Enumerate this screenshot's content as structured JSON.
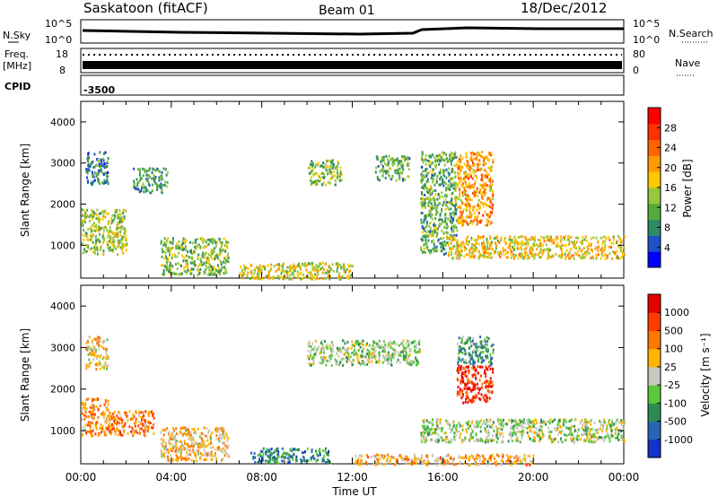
{
  "header": {
    "site": "Saskatoon (fitACF)",
    "beam": "Beam 01",
    "date": "18/Dec/2012"
  },
  "aux_panels": {
    "nsky_label": "N.Sky",
    "nsky_tick_hi": "10^5",
    "nsky_tick_lo": "10^0",
    "nsearch_label": "N.Search",
    "nsearch_tick_hi": "10^5",
    "nsearch_tick_lo": "10^0",
    "freq_label_1": "Freq.",
    "freq_label_2": "[MHz]",
    "freq_tick_hi": "18",
    "freq_tick_lo": "8",
    "nave_label": "Nave",
    "nave_tick_hi": "80",
    "nave_tick_lo": "0",
    "cpid_label": "CPID",
    "cpid_value": "-3500"
  },
  "chart_data": [
    {
      "type": "heatmap",
      "title": "Power",
      "ylabel": "Slant Range [km]",
      "ylim": [
        200,
        4500
      ],
      "yticks": [
        "1000",
        "2000",
        "3000",
        "4000"
      ],
      "xlim": [
        0,
        24
      ],
      "colorbar_label": "Power [dB]",
      "colorbar_ticks": [
        "4",
        "8",
        "12",
        "16",
        "20",
        "24",
        "28"
      ],
      "colors": [
        "#0000ff",
        "#1e50c8",
        "#2d8c64",
        "#55aa3c",
        "#96c83c",
        "#ffc800",
        "#ff9b00",
        "#ff6400",
        "#ff3200",
        "#ff0000"
      ],
      "regions": [
        {
          "t": [
            0.0,
            2.0
          ],
          "r": [
            800,
            1900
          ],
          "level": 0.45
        },
        {
          "t": [
            0.2,
            1.2
          ],
          "r": [
            2500,
            3300
          ],
          "level": 0.25
        },
        {
          "t": [
            2.3,
            3.8
          ],
          "r": [
            2300,
            2900
          ],
          "level": 0.3
        },
        {
          "t": [
            3.5,
            6.5
          ],
          "r": [
            300,
            1200
          ],
          "level": 0.4
        },
        {
          "t": [
            7.0,
            12.0
          ],
          "r": [
            200,
            600
          ],
          "level": 0.5
        },
        {
          "t": [
            10.0,
            11.5
          ],
          "r": [
            2500,
            3100
          ],
          "level": 0.4
        },
        {
          "t": [
            13.0,
            14.5
          ],
          "r": [
            2600,
            3200
          ],
          "level": 0.35
        },
        {
          "t": [
            15.0,
            16.6
          ],
          "r": [
            800,
            3300
          ],
          "level": 0.35
        },
        {
          "t": [
            16.6,
            18.2
          ],
          "r": [
            1500,
            3300
          ],
          "level": 0.65
        },
        {
          "t": [
            16.2,
            24.0
          ],
          "r": [
            700,
            1250
          ],
          "level": 0.55
        }
      ]
    },
    {
      "type": "heatmap",
      "title": "Velocity",
      "ylabel": "Slant Range [km]",
      "ylim": [
        200,
        4500
      ],
      "yticks": [
        "1000",
        "2000",
        "3000",
        "4000"
      ],
      "xlim": [
        0,
        24
      ],
      "xticks": [
        "00:00",
        "04:00",
        "08:00",
        "12:00",
        "16:00",
        "20:00",
        "00:00"
      ],
      "xlabel": "Time UT",
      "colorbar_label": "Velocity [m s⁻¹]",
      "colorbar_ticks": [
        "1000",
        "500",
        "100",
        "25",
        "-25",
        "-100",
        "-500",
        "-1000"
      ],
      "colors": [
        "#1432c8",
        "#2864b4",
        "#2d8c50",
        "#5ac83c",
        "#c8c8c0",
        "#ffb400",
        "#ff7800",
        "#ff3c00",
        "#e60000"
      ],
      "regions": [
        {
          "t": [
            0.0,
            1.2
          ],
          "r": [
            900,
            1800
          ],
          "level": 0.7
        },
        {
          "t": [
            1.2,
            3.2
          ],
          "r": [
            900,
            1500
          ],
          "level": 0.72
        },
        {
          "t": [
            0.2,
            1.2
          ],
          "r": [
            2500,
            3300
          ],
          "level": 0.55
        },
        {
          "t": [
            3.5,
            6.5
          ],
          "r": [
            300,
            1100
          ],
          "level": 0.6
        },
        {
          "t": [
            7.5,
            11.0
          ],
          "r": [
            250,
            600
          ],
          "level": 0.25
        },
        {
          "t": [
            10.0,
            15.0
          ],
          "r": [
            2600,
            3200
          ],
          "level": 0.45
        },
        {
          "t": [
            15.0,
            24.0
          ],
          "r": [
            750,
            1300
          ],
          "level": 0.45
        },
        {
          "t": [
            16.6,
            18.2
          ],
          "r": [
            1700,
            2600
          ],
          "level": 0.88
        },
        {
          "t": [
            16.6,
            18.2
          ],
          "r": [
            2600,
            3300
          ],
          "level": 0.3
        },
        {
          "t": [
            12.0,
            20.0
          ],
          "r": [
            200,
            450
          ],
          "level": 0.62
        }
      ]
    }
  ]
}
